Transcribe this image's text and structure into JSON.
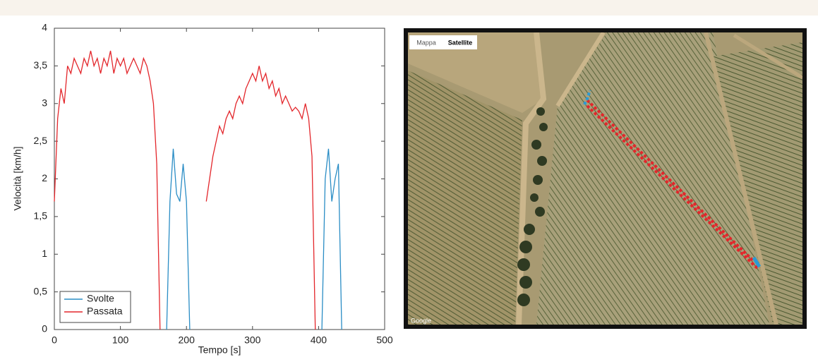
{
  "chart_data": {
    "type": "line",
    "x_label": "Tempo [s]",
    "y_label": "Velocità [km/h]",
    "x": [
      0,
      5,
      10,
      15,
      20,
      25,
      30,
      35,
      40,
      45,
      50,
      55,
      60,
      65,
      70,
      75,
      80,
      85,
      90,
      95,
      100,
      105,
      110,
      115,
      120,
      125,
      130,
      135,
      140,
      145,
      150,
      155,
      160,
      165,
      170,
      175,
      180,
      185,
      190,
      195,
      200,
      205,
      210,
      215,
      220,
      225,
      230,
      235,
      240,
      245,
      250,
      255,
      260,
      265,
      270,
      275,
      280,
      285,
      290,
      295,
      300,
      305,
      310,
      315,
      320,
      325,
      330,
      335,
      340,
      345,
      350,
      355,
      360,
      365,
      370,
      375,
      380,
      385,
      390,
      395,
      400,
      405,
      410,
      415,
      420,
      425,
      430,
      435,
      440,
      445,
      450,
      455,
      460,
      465,
      470,
      475,
      480,
      485,
      490,
      495,
      500
    ],
    "series": [
      {
        "name": "Svolte",
        "color": "#2a8dc5",
        "values": [
          null,
          null,
          null,
          null,
          null,
          null,
          null,
          null,
          null,
          null,
          null,
          null,
          null,
          null,
          null,
          null,
          null,
          null,
          null,
          null,
          null,
          null,
          null,
          null,
          null,
          null,
          null,
          null,
          null,
          null,
          null,
          null,
          null,
          null,
          0,
          1.7,
          2.4,
          1.8,
          1.7,
          2.2,
          1.7,
          0,
          null,
          null,
          null,
          null,
          null,
          null,
          null,
          null,
          null,
          null,
          null,
          null,
          null,
          null,
          null,
          null,
          null,
          null,
          null,
          null,
          null,
          null,
          null,
          null,
          null,
          null,
          null,
          null,
          null,
          null,
          null,
          null,
          null,
          null,
          null,
          null,
          null,
          null,
          null,
          0,
          2.0,
          2.4,
          1.7,
          2.0,
          2.2,
          0,
          null,
          null,
          null,
          null,
          null,
          null,
          null,
          null,
          null,
          null,
          null,
          null,
          null
        ]
      },
      {
        "name": "Passata",
        "color": "#e3262b",
        "values": [
          1.7,
          2.8,
          3.2,
          3.0,
          3.5,
          3.4,
          3.6,
          3.5,
          3.4,
          3.6,
          3.5,
          3.7,
          3.5,
          3.6,
          3.4,
          3.6,
          3.5,
          3.7,
          3.4,
          3.6,
          3.5,
          3.6,
          3.4,
          3.5,
          3.6,
          3.5,
          3.4,
          3.6,
          3.5,
          3.3,
          3.0,
          2.2,
          0,
          null,
          null,
          null,
          null,
          null,
          null,
          null,
          null,
          null,
          null,
          null,
          null,
          null,
          1.7,
          2.0,
          2.3,
          2.5,
          2.7,
          2.6,
          2.8,
          2.9,
          2.8,
          3.0,
          3.1,
          3.0,
          3.2,
          3.3,
          3.4,
          3.3,
          3.5,
          3.3,
          3.4,
          3.2,
          3.3,
          3.1,
          3.2,
          3.0,
          3.1,
          3.0,
          2.9,
          2.95,
          2.9,
          2.8,
          3.0,
          2.8,
          2.3,
          0,
          null,
          null,
          null,
          null,
          null,
          null,
          null,
          null,
          null,
          null,
          null,
          null,
          null,
          null,
          null,
          null,
          null,
          null,
          null,
          null,
          null
        ]
      }
    ],
    "xlim": [
      0,
      500
    ],
    "xticks": [
      0,
      100,
      200,
      300,
      400,
      500
    ],
    "ylim": [
      0,
      4
    ],
    "yticks": [
      0,
      {
        "value": 0.5,
        "label": "0,5"
      },
      1,
      {
        "value": 1.5,
        "label": "1,5"
      },
      2,
      {
        "value": 2.5,
        "label": "2,5"
      },
      3,
      {
        "value": 3.5,
        "label": "3,5"
      },
      4
    ],
    "grid": false,
    "legend": "lower left"
  },
  "map": {
    "controls": [
      "Mappa",
      "Satellite"
    ],
    "attribution": "Google"
  }
}
